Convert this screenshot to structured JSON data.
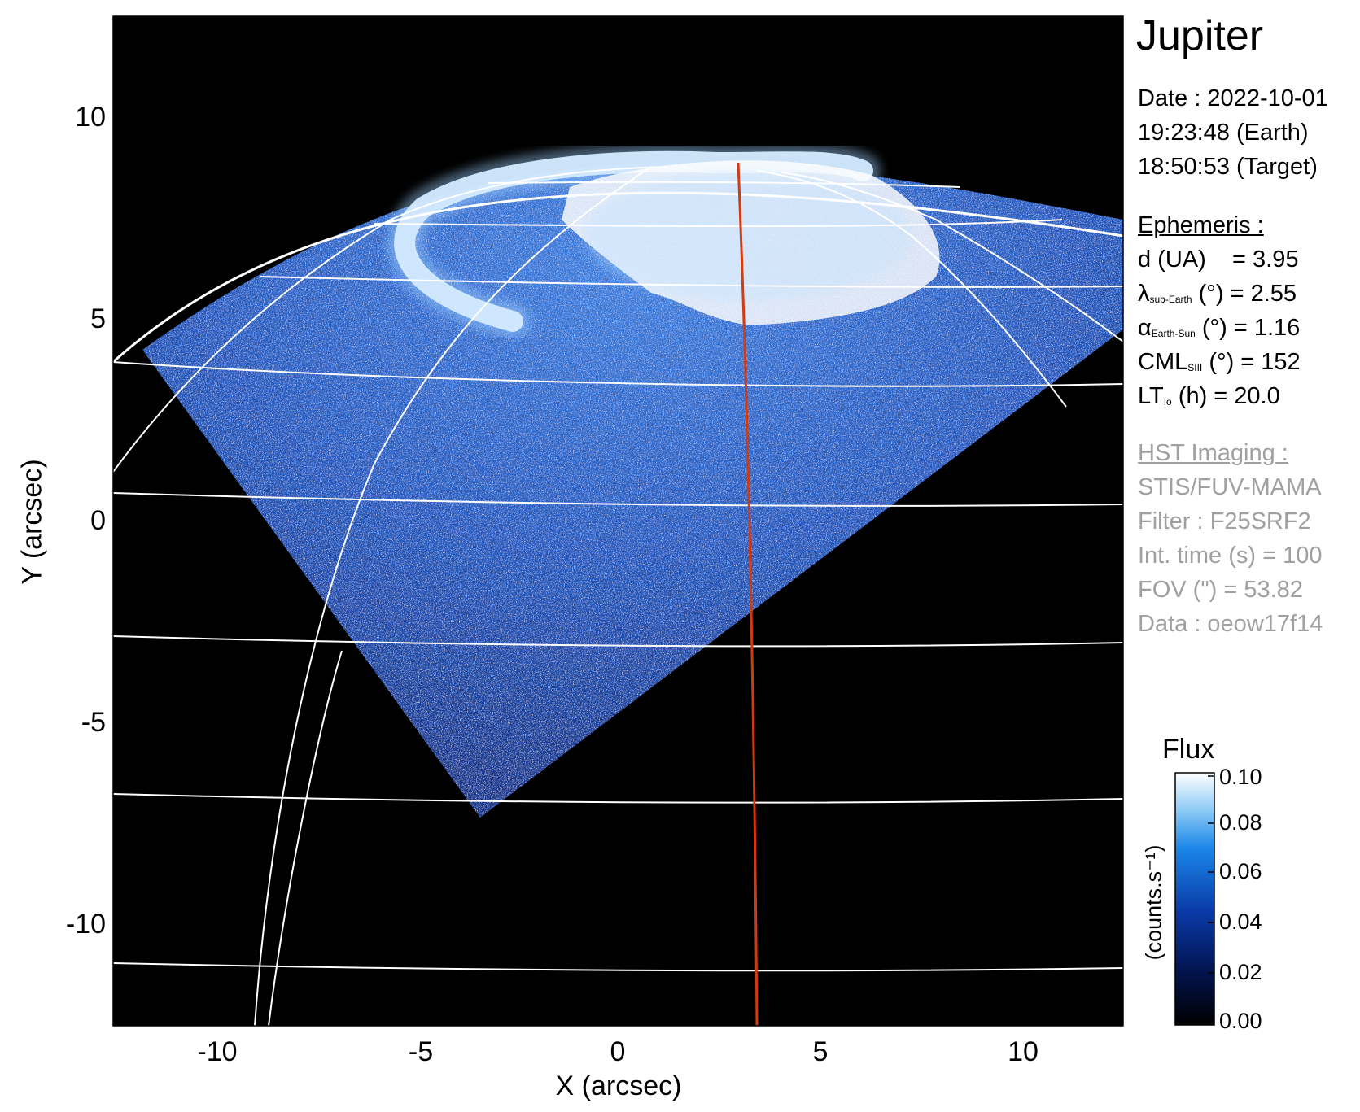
{
  "title": "Jupiter",
  "observation": {
    "date": "Date : 2022-10-01",
    "earth_time": "19:23:48 (Earth)",
    "target_time": "18:50:53 (Target)"
  },
  "ephemeris": {
    "header": "Ephemeris :",
    "d": {
      "label": "d (UA)",
      "value": "= 3.95"
    },
    "lambda": {
      "symbol": "λ",
      "sub": "sub-Earth",
      "unit": "(°)",
      "value": "= 2.55"
    },
    "alpha": {
      "symbol": "α",
      "sub": "Earth-Sun",
      "unit": "(°)",
      "value": "= 1.16"
    },
    "cml": {
      "symbol": "CML",
      "sub": "SIII",
      "unit": "(°)",
      "value": "= 152"
    },
    "lt": {
      "symbol": "LT",
      "sub": "Io",
      "unit": "(h)",
      "value": "= 20.0"
    }
  },
  "hst": {
    "header": "HST Imaging :",
    "instrument": "STIS/FUV-MAMA",
    "filter": "Filter : F25SRF2",
    "int_time": "Int. time (s) = 100",
    "fov": "FOV (\") = 53.82",
    "data": "Data : oeow17f14"
  },
  "colorbar": {
    "title": "Flux",
    "unit_label": "(counts.s⁻¹)",
    "ticks": [
      "0.00",
      "0.02",
      "0.04",
      "0.06",
      "0.08",
      "0.10"
    ],
    "range": [
      0.0,
      0.1
    ]
  },
  "axes": {
    "xlabel": "X (arcsec)",
    "ylabel": "Y (arcsec)",
    "xticks": [
      "-10",
      "-5",
      "0",
      "5",
      "10"
    ],
    "yticks": [
      "10",
      "5",
      "0",
      "-5",
      "-10"
    ],
    "xlim": [
      -12.5,
      12.5
    ],
    "ylim": [
      -12.5,
      12.5
    ]
  },
  "colors": {
    "background": "#000000",
    "emission_low": "#0a2a8a",
    "emission_high": "#ffffff",
    "grid": "#ffffff",
    "meridian": "#d23a10"
  }
}
